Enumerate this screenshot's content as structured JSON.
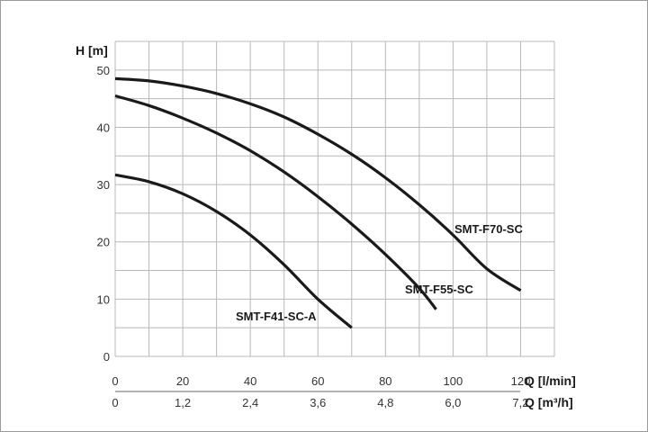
{
  "chart_data": {
    "type": "line",
    "title": "",
    "ylabel": "H [m]",
    "xlabel": "Q [l/min]",
    "xlabel2": "Q [m³/h]",
    "xlim": [
      0,
      130
    ],
    "ylim": [
      0,
      55
    ],
    "grid": true,
    "legend": "none",
    "x_ticks": [
      "0",
      "20",
      "40",
      "60",
      "80",
      "100",
      "120"
    ],
    "x2_ticks": [
      "0",
      "1,2",
      "2,4",
      "3,6",
      "4,8",
      "6,0",
      "7,2"
    ],
    "y_ticks": [
      "0",
      "10",
      "20",
      "30",
      "40",
      "50"
    ],
    "series": [
      {
        "name": "SMT-F70-SC",
        "points": [
          [
            0,
            48.5
          ],
          [
            10,
            48.1
          ],
          [
            20,
            47.2
          ],
          [
            30,
            45.9
          ],
          [
            40,
            44.1
          ],
          [
            50,
            41.8
          ],
          [
            60,
            38.8
          ],
          [
            70,
            35.3
          ],
          [
            80,
            31.2
          ],
          [
            90,
            26.5
          ],
          [
            100,
            21.2
          ],
          [
            110,
            15.3
          ],
          [
            120,
            11.5
          ]
        ]
      },
      {
        "name": "SMT-F55-SC",
        "points": [
          [
            0,
            45.5
          ],
          [
            10,
            43.8
          ],
          [
            20,
            41.6
          ],
          [
            30,
            39.0
          ],
          [
            40,
            35.9
          ],
          [
            50,
            32.2
          ],
          [
            60,
            27.9
          ],
          [
            70,
            23.1
          ],
          [
            80,
            17.8
          ],
          [
            90,
            11.9
          ],
          [
            95,
            8.2
          ]
        ]
      },
      {
        "name": "SMT-F41-SC-A",
        "points": [
          [
            0,
            31.7
          ],
          [
            10,
            30.5
          ],
          [
            20,
            28.4
          ],
          [
            30,
            25.3
          ],
          [
            40,
            21.2
          ],
          [
            50,
            16.0
          ],
          [
            60,
            10.0
          ],
          [
            70,
            5.0
          ]
        ]
      }
    ]
  }
}
